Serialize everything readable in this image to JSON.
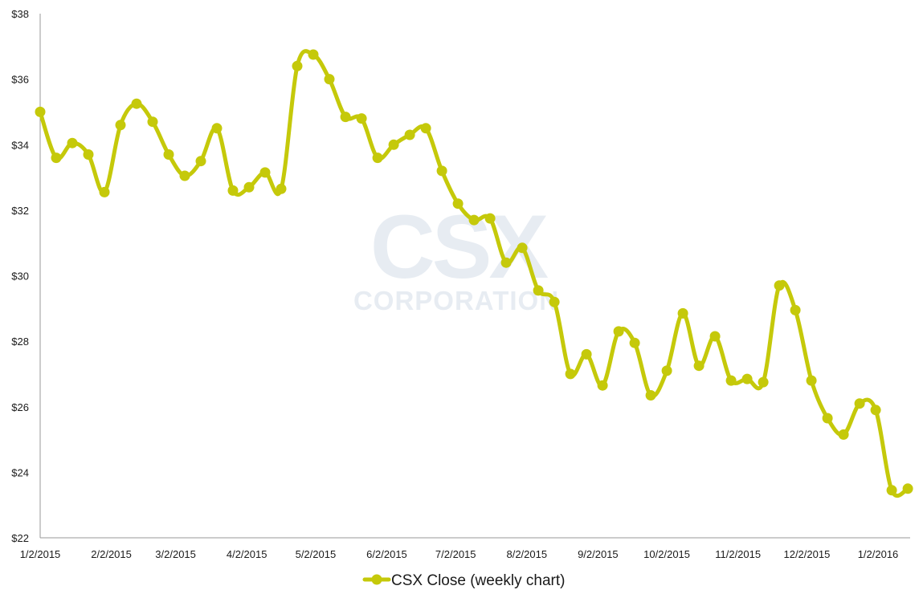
{
  "watermark": {
    "logo_text": "CSX",
    "logo_subtext": "CORPORATION"
  },
  "chart_data": {
    "type": "line",
    "title": "",
    "xlabel": "",
    "ylabel": "",
    "ylim": [
      22,
      38
    ],
    "y_ticks": [
      22,
      24,
      26,
      28,
      30,
      32,
      34,
      36,
      38
    ],
    "y_tick_labels": [
      "$22",
      "$24",
      "$26",
      "$28",
      "$30",
      "$32",
      "$34",
      "$36",
      "$38"
    ],
    "x_tick_labels": [
      "1/2/2015",
      "2/2/2015",
      "3/2/2015",
      "4/2/2015",
      "5/2/2015",
      "6/2/2015",
      "7/2/2015",
      "8/2/2015",
      "9/2/2015",
      "10/2/2015",
      "11/2/2015",
      "12/2/2015",
      "1/2/2016"
    ],
    "x_tick_dates": [
      "2015-01-02",
      "2015-02-02",
      "2015-03-02",
      "2015-04-02",
      "2015-05-02",
      "2015-06-02",
      "2015-07-02",
      "2015-08-02",
      "2015-09-02",
      "2015-10-02",
      "2015-11-02",
      "2015-12-02",
      "2016-01-02"
    ],
    "xlim": [
      "2015-01-02",
      "2016-01-16"
    ],
    "grid": false,
    "legend": {
      "position": "bottom",
      "entries": [
        "CSX Close (weekly chart)"
      ]
    },
    "colors": {
      "series": "#c5c90a",
      "axis": "#999999"
    },
    "series": [
      {
        "name": "CSX Close (weekly chart)",
        "x": [
          "2015-01-02",
          "2015-01-09",
          "2015-01-16",
          "2015-01-23",
          "2015-01-30",
          "2015-02-06",
          "2015-02-13",
          "2015-02-20",
          "2015-02-27",
          "2015-03-06",
          "2015-03-13",
          "2015-03-20",
          "2015-03-27",
          "2015-04-03",
          "2015-04-10",
          "2015-04-17",
          "2015-04-24",
          "2015-05-01",
          "2015-05-08",
          "2015-05-15",
          "2015-05-22",
          "2015-05-29",
          "2015-06-05",
          "2015-06-12",
          "2015-06-19",
          "2015-06-26",
          "2015-07-03",
          "2015-07-10",
          "2015-07-17",
          "2015-07-24",
          "2015-07-31",
          "2015-08-07",
          "2015-08-14",
          "2015-08-21",
          "2015-08-28",
          "2015-09-04",
          "2015-09-11",
          "2015-09-18",
          "2015-09-25",
          "2015-10-02",
          "2015-10-09",
          "2015-10-16",
          "2015-10-23",
          "2015-10-30",
          "2015-11-06",
          "2015-11-13",
          "2015-11-20",
          "2015-11-27",
          "2015-12-04",
          "2015-12-11",
          "2015-12-18",
          "2015-12-25",
          "2016-01-01",
          "2016-01-08",
          "2016-01-15"
        ],
        "values": [
          35.0,
          33.6,
          34.05,
          33.7,
          32.55,
          34.6,
          35.25,
          34.7,
          33.7,
          33.05,
          33.5,
          34.5,
          32.6,
          32.7,
          33.15,
          32.65,
          36.4,
          36.75,
          36.0,
          34.85,
          34.8,
          33.6,
          34.0,
          34.3,
          34.5,
          33.2,
          32.2,
          31.7,
          31.75,
          30.4,
          30.85,
          29.55,
          29.2,
          27.0,
          27.6,
          26.65,
          28.3,
          27.95,
          26.35,
          27.1,
          28.85,
          27.25,
          28.15,
          26.8,
          26.85,
          26.75,
          29.7,
          28.95,
          26.8,
          25.65,
          25.15,
          26.1,
          25.9,
          23.45,
          23.5
        ]
      }
    ]
  }
}
